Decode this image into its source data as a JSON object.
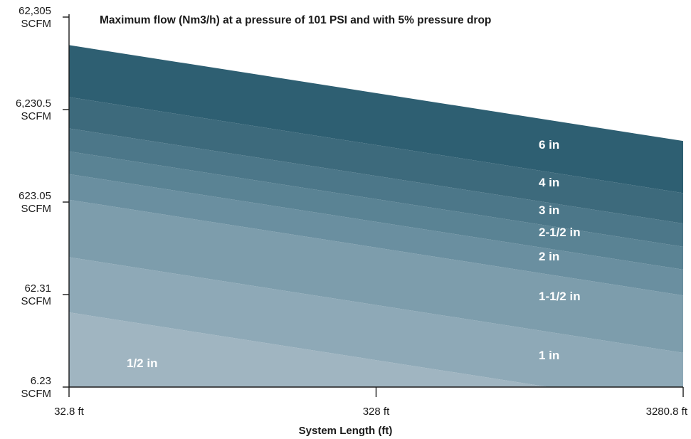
{
  "chart_data": {
    "type": "area",
    "title": "Maximum flow (Nm3/h) at a pressure of 101 PSI and with 5% pressure drop",
    "xlabel": "System Length (ft)",
    "ylabel": "",
    "x_scale": "log",
    "y_scale": "log",
    "x": [
      32.8,
      3280.8
    ],
    "xlim": [
      32.8,
      3280.8
    ],
    "ylim": [
      6.23,
      62305
    ],
    "x_ticks": [
      {
        "value": 32.8,
        "label": "32.8 ft"
      },
      {
        "value": 328,
        "label": "328 ft"
      },
      {
        "value": 3280.8,
        "label": "3280.8 ft"
      }
    ],
    "y_ticks": [
      {
        "value": 62305,
        "label": "62,305",
        "unit": "SCFM"
      },
      {
        "value": 6230.5,
        "label": "6,230.5",
        "unit": "SCFM"
      },
      {
        "value": 623.05,
        "label": "623.05",
        "unit": "SCFM"
      },
      {
        "value": 62.31,
        "label": "62.31",
        "unit": "SCFM"
      },
      {
        "value": 6.23,
        "label": "6.23",
        "unit": "SCFM"
      }
    ],
    "series": [
      {
        "name": "6 in",
        "values": [
          31000,
          2850
        ],
        "color": "#2e5f72"
      },
      {
        "name": "4 in",
        "values": [
          8500,
          780
        ],
        "color": "#3d6a7c"
      },
      {
        "name": "3 in",
        "values": [
          3900,
          365
        ],
        "color": "#4c7789"
      },
      {
        "name": "2-1/2 in",
        "values": [
          2200,
          205
        ],
        "color": "#5a8394"
      },
      {
        "name": "2 in",
        "values": [
          1250,
          116
        ],
        "color": "#6a8fa0"
      },
      {
        "name": "1-1/2 in",
        "values": [
          660,
          61
        ],
        "color": "#7d9dac"
      },
      {
        "name": "1 in",
        "values": [
          158,
          14.6
        ],
        "color": "#8ea9b7"
      },
      {
        "name": "1/2 in",
        "values": [
          40,
          3.7
        ],
        "color": "#a0b5c1"
      }
    ],
    "grid": false,
    "legend": "none"
  }
}
